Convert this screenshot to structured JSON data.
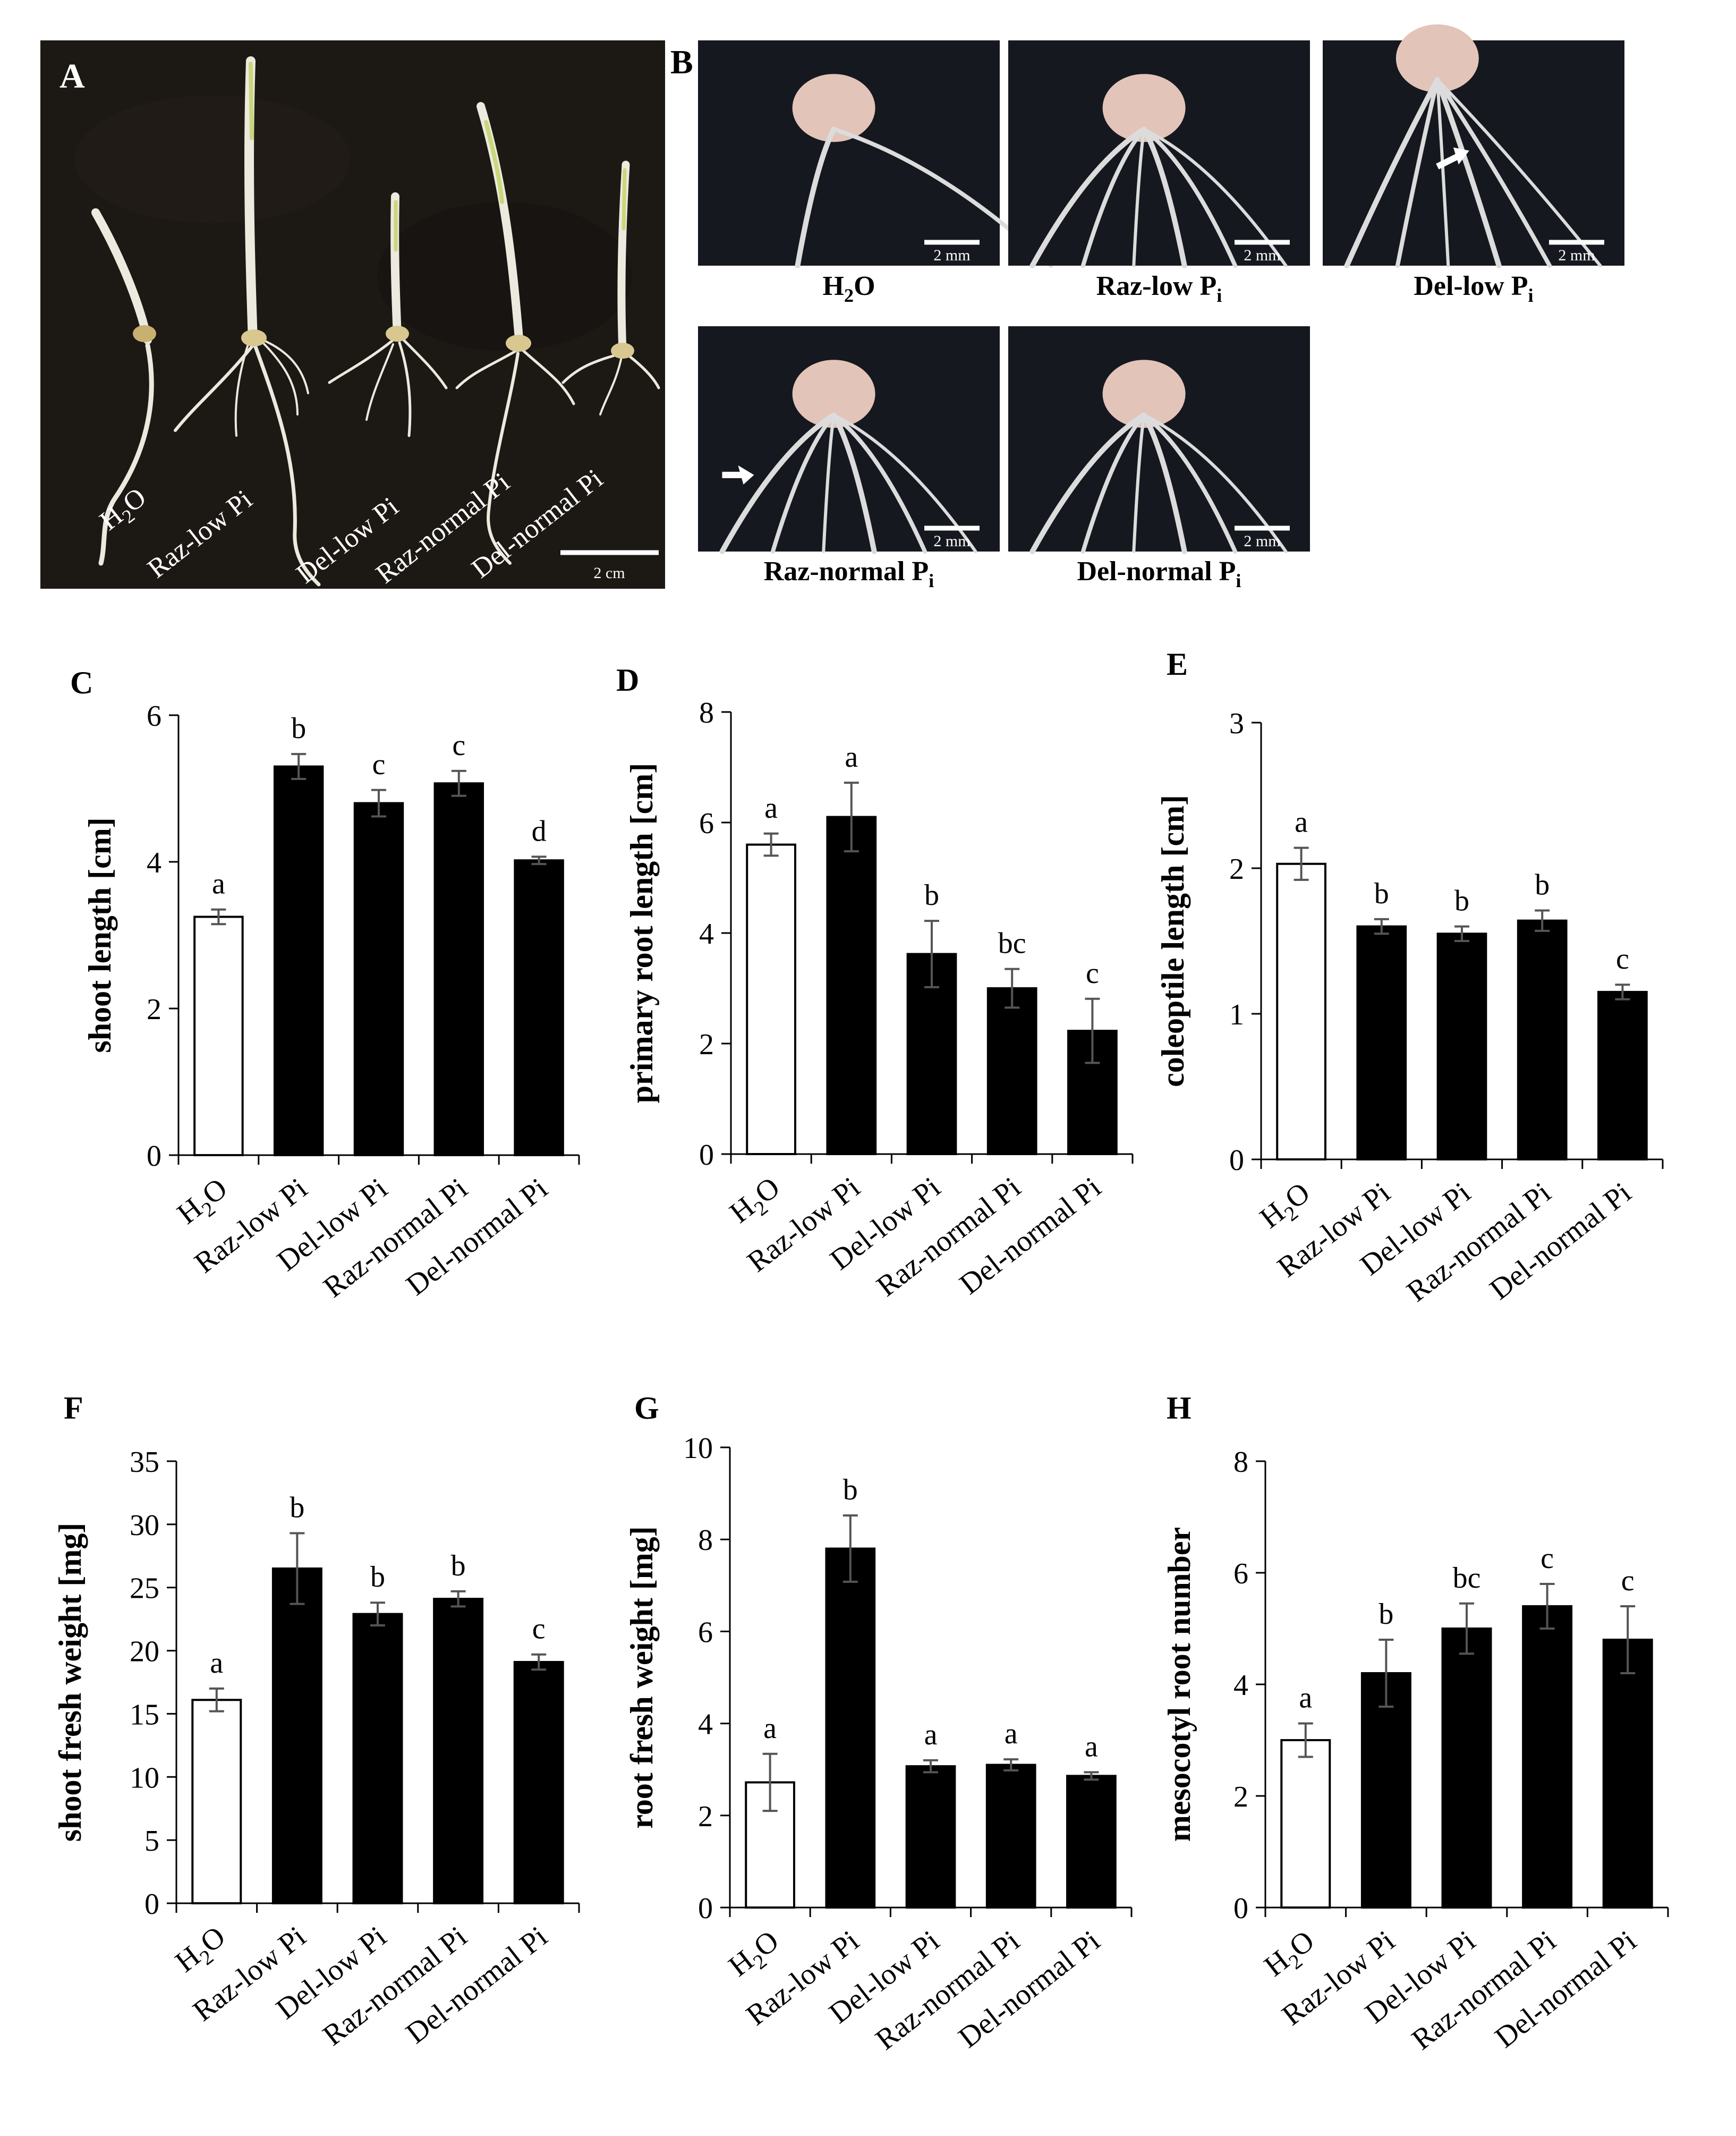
{
  "photo_panels": {
    "A": {
      "letter": "A",
      "labels": [
        "H2O",
        "Raz-low Pi",
        "Del-low Pi",
        "Raz-normal Pi",
        "Del-normal Pi"
      ],
      "scale": "2 cm"
    },
    "B": {
      "letter": "B",
      "tiles": [
        {
          "base": "H",
          "sub": "2",
          "rest": "O",
          "scale": "2 mm",
          "arrow": false
        },
        {
          "base": "Raz-low P",
          "sub": "i",
          "rest": "",
          "scale": "2 mm",
          "arrow": false
        },
        {
          "base": "Del-low P",
          "sub": "i",
          "rest": "",
          "scale": "2 mm",
          "arrow": true
        },
        {
          "base": "Raz-normal P",
          "sub": "i",
          "rest": "",
          "scale": "2 mm",
          "arrow": true
        },
        {
          "base": "Del-normal P",
          "sub": "i",
          "rest": "",
          "scale": "2 mm",
          "arrow": false
        }
      ]
    }
  },
  "colors": {
    "photo_bg": "#1c1814",
    "photo_bg_b": "#15181f",
    "seedling": "#ece9df",
    "shoot_green": "#c8d87a",
    "bar_fill": "#000000",
    "bar_first": "#ffffff",
    "error_bar": "#555555"
  },
  "chart_data": [
    {
      "id": "C",
      "letter": "C",
      "type": "bar",
      "categories": [
        "H2O",
        "Raz-low Pi",
        "Del-low Pi",
        "Raz-normal Pi",
        "Del-normal Pi"
      ],
      "values": [
        3.25,
        5.3,
        4.8,
        5.07,
        4.02
      ],
      "errors": [
        0.1,
        0.17,
        0.18,
        0.17,
        0.05
      ],
      "letters": [
        "a",
        "b",
        "c",
        "c",
        "d"
      ],
      "ylabel": "shoot length [cm]",
      "ylim": [
        0,
        6
      ],
      "yticks": [
        0,
        2,
        4,
        6
      ]
    },
    {
      "id": "D",
      "letter": "D",
      "type": "bar",
      "categories": [
        "H2O",
        "Raz-low Pi",
        "Del-low Pi",
        "Raz-normal Pi",
        "Del-normal Pi"
      ],
      "values": [
        5.6,
        6.1,
        3.62,
        3.0,
        2.23
      ],
      "errors": [
        0.2,
        0.62,
        0.6,
        0.35,
        0.58
      ],
      "letters": [
        "a",
        "a",
        "b",
        "bc",
        "c"
      ],
      "ylabel": "primary root length [cm]",
      "ylim": [
        0,
        8
      ],
      "yticks": [
        0,
        2,
        4,
        6,
        8
      ]
    },
    {
      "id": "E",
      "letter": "E",
      "type": "bar",
      "categories": [
        "H2O",
        "Raz-low Pi",
        "Del-low Pi",
        "Raz-normal Pi",
        "Del-normal Pi"
      ],
      "values": [
        2.03,
        1.6,
        1.55,
        1.64,
        1.15
      ],
      "errors": [
        0.11,
        0.05,
        0.05,
        0.07,
        0.05
      ],
      "letters": [
        "a",
        "b",
        "b",
        "b",
        "c"
      ],
      "ylabel": "coleoptile length [cm]",
      "ylim": [
        0,
        3
      ],
      "yticks": [
        0,
        1,
        2,
        3
      ]
    },
    {
      "id": "F",
      "letter": "F",
      "type": "bar",
      "categories": [
        "H2O",
        "Raz-low Pi",
        "Del-low Pi",
        "Raz-normal Pi",
        "Del-normal Pi"
      ],
      "values": [
        16.1,
        26.5,
        22.9,
        24.1,
        19.1
      ],
      "errors": [
        0.9,
        2.8,
        0.9,
        0.6,
        0.6
      ],
      "letters": [
        "a",
        "b",
        "b",
        "b",
        "c"
      ],
      "ylabel": "shoot fresh weight [mg]",
      "ylim": [
        0,
        35
      ],
      "yticks": [
        0,
        5,
        10,
        15,
        20,
        25,
        30,
        35
      ]
    },
    {
      "id": "G",
      "letter": "G",
      "type": "bar",
      "categories": [
        "H2O",
        "Raz-low Pi",
        "Del-low Pi",
        "Raz-normal Pi",
        "Del-normal Pi"
      ],
      "values": [
        2.72,
        7.8,
        3.07,
        3.1,
        2.86
      ],
      "errors": [
        0.62,
        0.72,
        0.13,
        0.12,
        0.08
      ],
      "letters": [
        "a",
        "b",
        "a",
        "a",
        "a"
      ],
      "ylabel": "root fresh weight [mg]",
      "ylim": [
        0,
        10
      ],
      "yticks": [
        0,
        2,
        4,
        6,
        8,
        10
      ]
    },
    {
      "id": "H",
      "letter": "H",
      "type": "bar",
      "categories": [
        "H2O",
        "Raz-low Pi",
        "Del-low Pi",
        "Raz-normal Pi",
        "Del-normal Pi"
      ],
      "values": [
        3.0,
        4.2,
        5.0,
        5.4,
        4.8
      ],
      "errors": [
        0.3,
        0.6,
        0.45,
        0.4,
        0.6
      ],
      "letters": [
        "a",
        "b",
        "bc",
        "c",
        "c"
      ],
      "ylabel": "mesocotyl root number",
      "ylim": [
        0,
        8
      ],
      "yticks": [
        0,
        2,
        4,
        6,
        8
      ]
    }
  ]
}
